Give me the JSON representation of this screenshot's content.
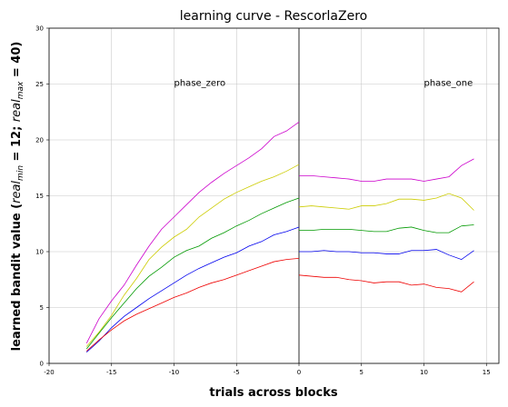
{
  "chart_data": {
    "type": "line",
    "title": "learning curve - RescorlaZero",
    "xlabel": "trials across blocks",
    "ylabel_parts": {
      "prefix": "learned bandit value (",
      "real_min_label": "real",
      "real_min_sub": "min",
      "real_min_value": " = 12; ",
      "real_max_label": "real",
      "real_max_sub": "max",
      "real_max_value": " = 40)"
    },
    "xlim": [
      -20,
      16
    ],
    "ylim": [
      0,
      30
    ],
    "xticks": [
      -20,
      -15,
      -10,
      -5,
      0,
      5,
      10,
      15
    ],
    "yticks": [
      0,
      5,
      10,
      15,
      20,
      25,
      30
    ],
    "grid": true,
    "divider_x": 0,
    "annotations": [
      {
        "text": "phase_zero",
        "x": -10,
        "y": 25
      },
      {
        "text": "phase_one",
        "x": 10,
        "y": 25
      }
    ],
    "phase_zero_x": [
      -17,
      -16,
      -15,
      -14,
      -13,
      -12,
      -11,
      -10,
      -9,
      -8,
      -7,
      -6,
      -5,
      -4,
      -3,
      -2,
      -1,
      0
    ],
    "phase_one_x": [
      0,
      1,
      2,
      3,
      4,
      5,
      6,
      7,
      8,
      9,
      10,
      11,
      12,
      13,
      14
    ],
    "series": [
      {
        "color": "#cc00cc",
        "phase_zero": [
          1.8,
          4.0,
          5.6,
          7.0,
          8.8,
          10.5,
          12.0,
          13.1,
          14.2,
          15.3,
          16.2,
          17.0,
          17.7,
          18.4,
          19.2,
          20.3,
          20.8,
          21.6
        ],
        "phase_one": [
          16.8,
          16.8,
          16.7,
          16.6,
          16.5,
          16.3,
          16.3,
          16.5,
          16.5,
          16.5,
          16.3,
          16.5,
          16.7,
          17.7,
          18.3
        ]
      },
      {
        "color": "#cccc00",
        "phase_zero": [
          1.5,
          2.8,
          4.3,
          6.1,
          7.6,
          9.3,
          10.4,
          11.3,
          12.0,
          13.1,
          13.9,
          14.7,
          15.3,
          15.8,
          16.3,
          16.7,
          17.2,
          17.8
        ],
        "phase_one": [
          14.0,
          14.1,
          14.0,
          13.9,
          13.8,
          14.1,
          14.1,
          14.3,
          14.7,
          14.7,
          14.6,
          14.8,
          15.2,
          14.8,
          13.7
        ]
      },
      {
        "color": "#009900",
        "phase_zero": [
          1.3,
          2.7,
          4.1,
          5.4,
          6.7,
          7.8,
          8.6,
          9.5,
          10.1,
          10.5,
          11.2,
          11.7,
          12.3,
          12.8,
          13.4,
          13.9,
          14.4,
          14.8
        ],
        "phase_one": [
          11.9,
          11.9,
          12.0,
          12.0,
          12.0,
          11.9,
          11.8,
          11.8,
          12.1,
          12.2,
          11.9,
          11.7,
          11.7,
          12.3,
          12.4
        ]
      },
      {
        "color": "#0000ee",
        "phase_zero": [
          1.0,
          2.0,
          3.2,
          4.2,
          5.0,
          5.8,
          6.5,
          7.2,
          7.9,
          8.5,
          9.0,
          9.5,
          9.9,
          10.5,
          10.9,
          11.5,
          11.8,
          12.2
        ],
        "phase_one": [
          10.0,
          10.0,
          10.1,
          10.0,
          10.0,
          9.9,
          9.9,
          9.8,
          9.8,
          10.1,
          10.1,
          10.2,
          9.7,
          9.3,
          10.1
        ]
      },
      {
        "color": "#ee0000",
        "phase_zero": [
          1.1,
          2.1,
          3.0,
          3.8,
          4.4,
          4.9,
          5.4,
          5.9,
          6.3,
          6.8,
          7.2,
          7.5,
          7.9,
          8.3,
          8.7,
          9.1,
          9.3,
          9.4
        ],
        "phase_one": [
          7.9,
          7.8,
          7.7,
          7.7,
          7.5,
          7.4,
          7.2,
          7.3,
          7.3,
          7.0,
          7.1,
          6.8,
          6.7,
          6.4,
          7.3
        ]
      }
    ]
  }
}
